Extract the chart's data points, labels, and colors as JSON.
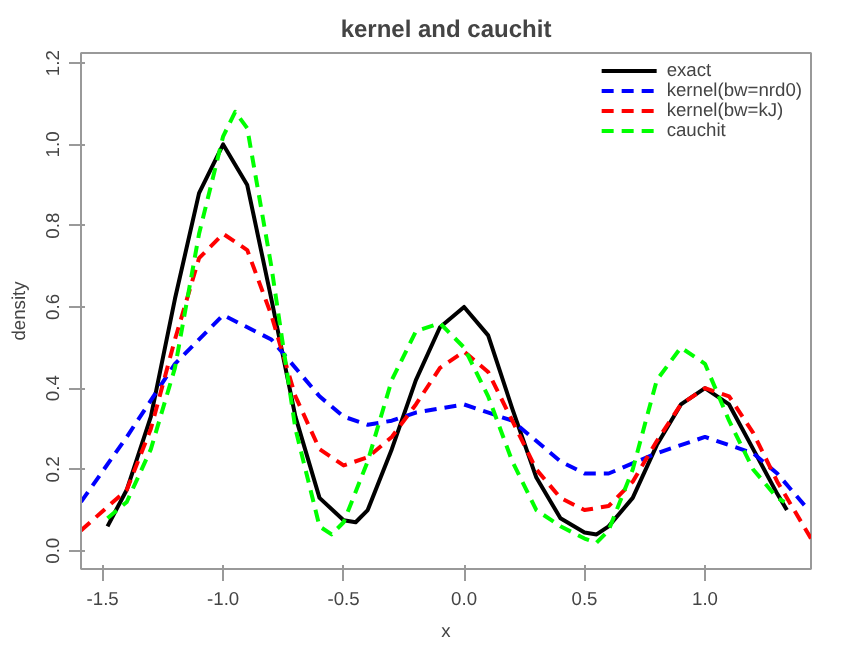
{
  "chart_data": {
    "type": "line",
    "title": "kernel and cauchit",
    "xlabel": "x",
    "ylabel": "density",
    "xlim": [
      -1.59,
      1.44
    ],
    "ylim": [
      -0.045,
      1.225
    ],
    "xticks": [
      {
        "value": -1.5,
        "label": "-1.5"
      },
      {
        "value": -1.0,
        "label": "-1.0"
      },
      {
        "value": -0.5,
        "label": "-0.5"
      },
      {
        "value": 0,
        "label": "0.0"
      },
      {
        "value": 0.5,
        "label": "0.5"
      },
      {
        "value": 1.0,
        "label": "1.0"
      }
    ],
    "yticks": [
      {
        "value": 0,
        "label": "0.0"
      },
      {
        "value": 0.2,
        "label": "0.2"
      },
      {
        "value": 0.4,
        "label": "0.4"
      },
      {
        "value": 0.6,
        "label": "0.6"
      },
      {
        "value": 0.8,
        "label": "0.8"
      },
      {
        "value": 1.0,
        "label": "1.0"
      },
      {
        "value": 1.2,
        "label": "1.2"
      }
    ],
    "grid": false,
    "legend": "top right",
    "marker": "none",
    "series": [
      {
        "name": "exact",
        "color": "#000000",
        "line_style": "solid",
        "x": [
          -1.48,
          -1.4,
          -1.3,
          -1.2,
          -1.1,
          -1.0,
          -0.9,
          -0.8,
          -0.7,
          -0.6,
          -0.5,
          -0.45,
          -0.4,
          -0.3,
          -0.2,
          -0.1,
          0,
          0.1,
          0.2,
          0.3,
          0.4,
          0.5,
          0.55,
          0.6,
          0.7,
          0.8,
          0.9,
          1.0,
          1.1,
          1.2,
          1.3,
          1.34
        ],
        "values": [
          0.06,
          0.15,
          0.33,
          0.62,
          0.88,
          1.0,
          0.9,
          0.62,
          0.33,
          0.13,
          0.075,
          0.07,
          0.1,
          0.25,
          0.42,
          0.55,
          0.6,
          0.53,
          0.35,
          0.18,
          0.08,
          0.045,
          0.04,
          0.06,
          0.13,
          0.26,
          0.36,
          0.4,
          0.36,
          0.25,
          0.14,
          0.1
        ]
      },
      {
        "name": "kernel(bw=nrd0)",
        "color": "#0000ff",
        "line_style": "dashed",
        "x": [
          -1.59,
          -1.4,
          -1.2,
          -1.0,
          -0.8,
          -0.6,
          -0.5,
          -0.4,
          -0.3,
          -0.2,
          0,
          0.2,
          0.4,
          0.5,
          0.6,
          0.8,
          1.0,
          1.2,
          1.3,
          1.43
        ],
        "values": [
          0.12,
          0.28,
          0.46,
          0.58,
          0.52,
          0.38,
          0.33,
          0.31,
          0.32,
          0.34,
          0.36,
          0.32,
          0.22,
          0.19,
          0.19,
          0.24,
          0.28,
          0.24,
          0.19,
          0.1
        ]
      },
      {
        "name": "kernel(bw=kJ)",
        "color": "#ff0000",
        "line_style": "dashed",
        "x": [
          -1.59,
          -1.4,
          -1.3,
          -1.2,
          -1.1,
          -1.0,
          -0.9,
          -0.8,
          -0.7,
          -0.6,
          -0.5,
          -0.4,
          -0.3,
          -0.2,
          -0.1,
          0,
          0.1,
          0.2,
          0.3,
          0.4,
          0.5,
          0.6,
          0.7,
          0.8,
          0.9,
          1.0,
          1.1,
          1.2,
          1.3,
          1.44
        ],
        "values": [
          0.05,
          0.15,
          0.3,
          0.52,
          0.72,
          0.78,
          0.74,
          0.58,
          0.38,
          0.25,
          0.21,
          0.23,
          0.28,
          0.36,
          0.45,
          0.49,
          0.44,
          0.32,
          0.2,
          0.13,
          0.1,
          0.11,
          0.17,
          0.27,
          0.36,
          0.4,
          0.38,
          0.29,
          0.17,
          0.03
        ]
      },
      {
        "name": "cauchit",
        "color": "#00ff00",
        "line_style": "dashed",
        "x": [
          -1.48,
          -1.4,
          -1.3,
          -1.2,
          -1.1,
          -1.0,
          -0.95,
          -0.9,
          -0.8,
          -0.7,
          -0.6,
          -0.55,
          -0.5,
          -0.4,
          -0.3,
          -0.2,
          -0.1,
          0,
          0.1,
          0.2,
          0.3,
          0.4,
          0.5,
          0.55,
          0.6,
          0.7,
          0.8,
          0.9,
          1.0,
          1.1,
          1.2,
          1.3,
          1.33
        ],
        "values": [
          0.08,
          0.12,
          0.25,
          0.45,
          0.78,
          1.02,
          1.08,
          1.04,
          0.7,
          0.3,
          0.06,
          0.04,
          0.07,
          0.22,
          0.42,
          0.54,
          0.56,
          0.5,
          0.38,
          0.22,
          0.1,
          0.06,
          0.03,
          0.02,
          0.05,
          0.2,
          0.42,
          0.5,
          0.46,
          0.32,
          0.2,
          0.13,
          0.12
        ]
      }
    ]
  }
}
